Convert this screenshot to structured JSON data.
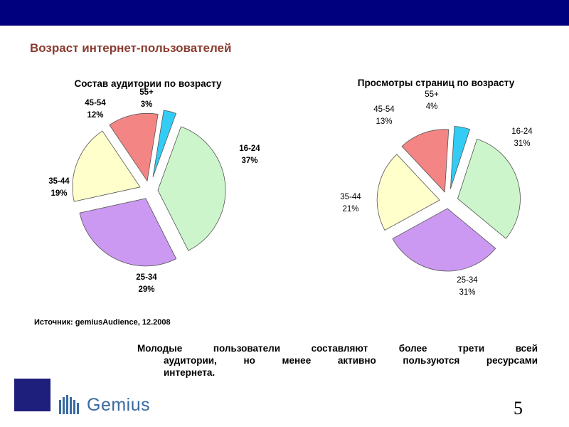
{
  "slide": {
    "title": "Возраст интернет-пользователей",
    "source": "Источник: gemiusAudience, 12.2008",
    "note_lines": [
      "Молодые пользователи составляют более трети всей",
      "аудитории, но менее активно пользуются ресурсами",
      "интернета."
    ],
    "logo_text": "Gemius",
    "page_number": "5",
    "colors": {
      "top_band": "#00007e",
      "title": "#8a3b30",
      "logo_square": "#1e1e7c",
      "logo_text": "#3a6aa0"
    }
  },
  "chart_data": [
    {
      "type": "pie",
      "title": "Состав аудитории по возрасту",
      "categories": [
        "16-24",
        "25-34",
        "35-44",
        "45-54",
        "55+"
      ],
      "values": [
        37,
        29,
        19,
        12,
        3
      ],
      "labels": [
        "37%",
        "29%",
        "19%",
        "12%",
        "3%"
      ],
      "colors": [
        "#ccf5cc",
        "#cc99f2",
        "#ffffcc",
        "#f48585",
        "#33ccf5"
      ],
      "exploded": true,
      "label_style": "bold"
    },
    {
      "type": "pie",
      "title": "Просмотры страниц по возрасту",
      "categories": [
        "16-24",
        "25-34",
        "35-44",
        "45-54",
        "55+"
      ],
      "values": [
        31,
        31,
        21,
        13,
        4
      ],
      "labels": [
        "31%",
        "31%",
        "21%",
        "13%",
        "4%"
      ],
      "colors": [
        "#ccf5cc",
        "#cc99f2",
        "#ffffcc",
        "#f48585",
        "#33ccf5"
      ],
      "exploded": true,
      "label_style": "normal"
    }
  ]
}
